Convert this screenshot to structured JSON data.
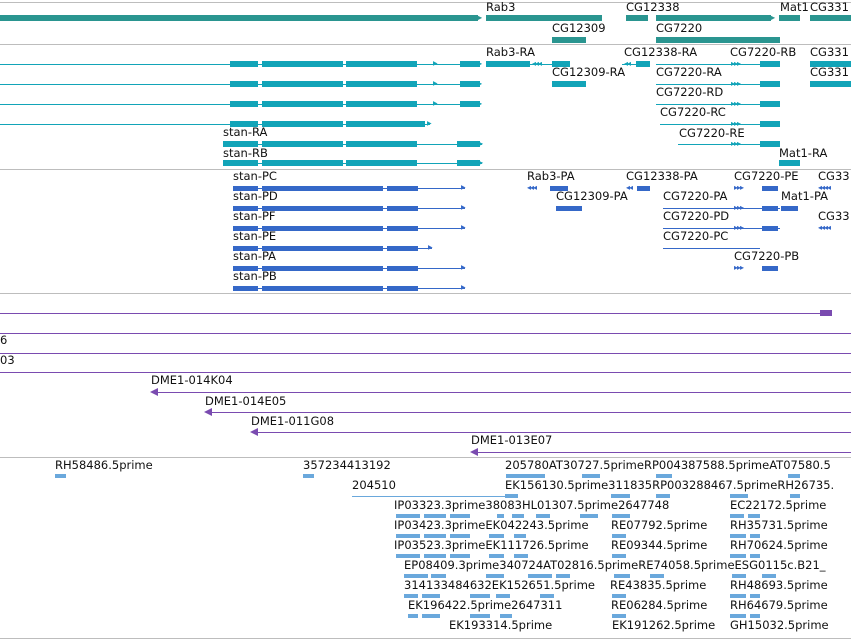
{
  "colors": {
    "gene": "#2a9590",
    "transcript": "#12a4b8",
    "protein": "#3568c8",
    "clone": "#7a4bb0",
    "est": "#6aa8dc",
    "separator": "#bdbdbd",
    "text": "#111111"
  },
  "tracks": {
    "genes": {
      "labels": [
        "Rab3",
        "CG12338",
        "Mat1",
        "CG331",
        "CG12309",
        "CG7220"
      ]
    },
    "transcripts": {
      "labels": [
        "Rab3-RA",
        "CG12338-RA",
        "CG7220-RB",
        "CG331",
        "CG12309-RA",
        "CG7220-RA",
        "CG331",
        "CG7220-RD",
        "CG7220-RC",
        "stan-RA",
        "CG7220-RE",
        "stan-RB",
        "Mat1-RA"
      ]
    },
    "proteins": {
      "labels": [
        "stan-PC",
        "Rab3-PA",
        "CG12338-PA",
        "CG7220-PE",
        "CG33",
        "stan-PD",
        "CG12309-PA",
        "CG7220-PA",
        "Mat1-PA",
        "stan-PF",
        "CG7220-PD",
        "CG33",
        "stan-PE",
        "CG7220-PC",
        "stan-PA",
        "CG7220-PB",
        "stan-PB"
      ]
    },
    "clones": {
      "labels": [
        "6",
        "03",
        "DME1-014K04",
        "DME1-014E05",
        "DME1-011G08",
        "DME1-013E07"
      ]
    },
    "ests": {
      "labels": [
        "RH58486.5prime",
        "357234413192",
        "205780AT30727.5primeRP004387588.5primeAT07580.5",
        "204510",
        "EK156130.5prime311835RP003288467.5primeRH26735.",
        "IP03323.3prime38083HL01307.5prime2647748",
        "EC22172.5prime",
        "IP03423.3primeEK042243.5prime",
        "RE07792.5prime",
        "RH35731.5prime",
        "IP03523.3primeEK111726.5prime",
        "RE09344.5prime",
        "RH70624.5prime",
        "EP08409.3prime340724AT02816.5primeRE74058.5primeESG0115c.B21_",
        "314133484632EK152651.5prime",
        "RE43835.5prime",
        "RH48693.5prime",
        "EK196422.5prime2647311",
        "RE06284.5prime",
        "RH64679.5prime",
        "EK193314.5prime",
        "EK191262.5prime",
        "GH15032.5prime"
      ]
    }
  }
}
